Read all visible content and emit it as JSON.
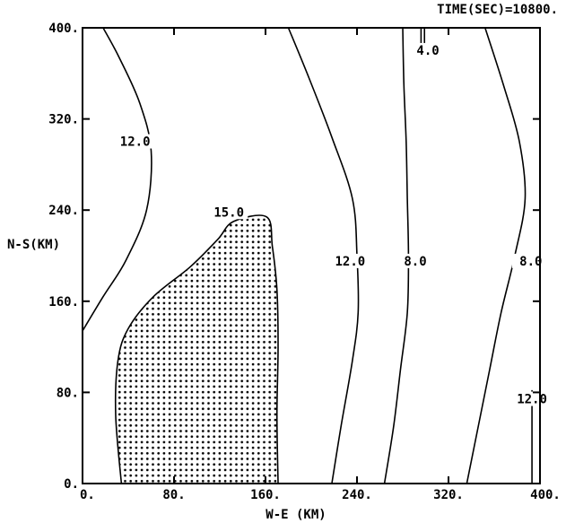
{
  "chart_data": {
    "type": "contour",
    "header": "TIME(SEC)=10800.",
    "xlabel": "W-E (KM)",
    "ylabel": "N-S(KM)",
    "xlim": [
      0,
      400
    ],
    "ylim": [
      0,
      400
    ],
    "x_ticks": [
      "0.",
      "80.",
      "160.",
      "240.",
      "320.",
      "400."
    ],
    "y_ticks": [
      "0.",
      "80.",
      "160.",
      "240.",
      "320.",
      "400."
    ],
    "x_tick_values": [
      0,
      80,
      160,
      240,
      320,
      400
    ],
    "y_tick_values": [
      0,
      80,
      160,
      240,
      320,
      400
    ],
    "contours": [
      {
        "label": "12.0",
        "level": 12.0,
        "label_at": [
          46,
          298
        ],
        "points": [
          [
            0,
            134
          ],
          [
            18,
            164
          ],
          [
            38,
            196
          ],
          [
            56,
            240
          ],
          [
            60,
            292
          ],
          [
            50,
            334
          ],
          [
            32,
            374
          ],
          [
            18,
            400
          ]
        ]
      },
      {
        "label": "15.0",
        "level": 15.0,
        "shaded": true,
        "label_at": [
          128,
          236
        ],
        "points": [
          [
            34,
            0
          ],
          [
            29,
            60
          ],
          [
            31,
            108
          ],
          [
            40,
            136
          ],
          [
            62,
            164
          ],
          [
            94,
            190
          ],
          [
            118,
            214
          ],
          [
            132,
            230
          ],
          [
            161,
            234
          ],
          [
            166,
            208
          ],
          [
            170,
            170
          ],
          [
            171,
            120
          ],
          [
            170,
            60
          ],
          [
            171,
            0
          ]
        ]
      },
      {
        "label": "12.0",
        "level": 12.0,
        "label_at": [
          234,
          193
        ],
        "points": [
          [
            218,
            0
          ],
          [
            226,
            50
          ],
          [
            236,
            108
          ],
          [
            241,
            150
          ],
          [
            240,
            200
          ],
          [
            236,
            250
          ],
          [
            218,
            304
          ],
          [
            198,
            356
          ],
          [
            180,
            400
          ]
        ]
      },
      {
        "label": "8.0",
        "level": 8.0,
        "label_at": [
          291,
          193
        ],
        "points": [
          [
            264,
            0
          ],
          [
            272,
            50
          ],
          [
            278,
            100
          ],
          [
            284,
            150
          ],
          [
            285,
            200
          ],
          [
            284,
            250
          ],
          [
            283,
            300
          ],
          [
            281,
            350
          ],
          [
            280,
            400
          ]
        ]
      },
      {
        "label": "4.0",
        "level": 4.0,
        "label_at": [
          302,
          378
        ],
        "points": [
          [
            296,
            400
          ],
          [
            296,
            384
          ]
        ]
      },
      {
        "label": "4.0",
        "level": 4.0,
        "points": [
          [
            299,
            400
          ],
          [
            299,
            384
          ]
        ]
      },
      {
        "label": "8.0",
        "level": 8.0,
        "label_at": [
          392,
          193
        ],
        "points": [
          [
            336,
            0
          ],
          [
            346,
            50
          ],
          [
            356,
            100
          ],
          [
            366,
            150
          ],
          [
            378,
            200
          ],
          [
            387,
            250
          ],
          [
            382,
            300
          ],
          [
            368,
            350
          ],
          [
            352,
            400
          ]
        ]
      },
      {
        "label": "12.0",
        "level": 12.0,
        "label_at": [
          393,
          72
        ],
        "points": [
          [
            393,
            0
          ],
          [
            393,
            40
          ],
          [
            393,
            82
          ]
        ]
      }
    ]
  }
}
